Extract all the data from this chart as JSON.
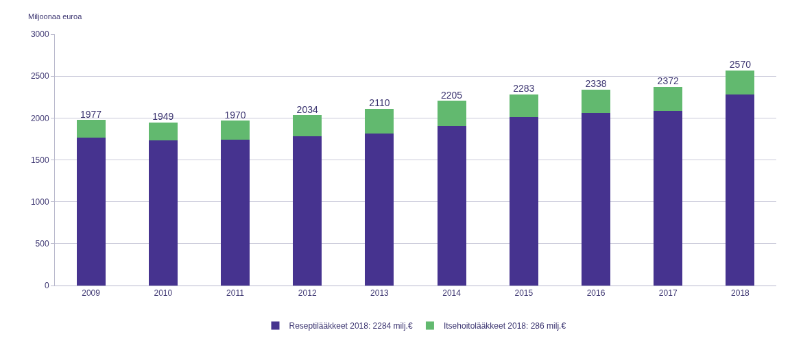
{
  "chart_data": {
    "type": "bar",
    "stacked": true,
    "ylabel": "Miljoonaa euroa",
    "categories": [
      "2009",
      "2010",
      "2011",
      "2012",
      "2013",
      "2014",
      "2015",
      "2016",
      "2017",
      "2018"
    ],
    "series": [
      {
        "name": "Reseptilääkkeet 2018: 2284 milj.€",
        "color": "#46338f",
        "values": [
          1766,
          1731,
          1739,
          1786,
          1818,
          1904,
          2015,
          2063,
          2087,
          2284
        ]
      },
      {
        "name": "Itsehoitolääkkeet 2018: 286 milj.€",
        "color": "#62b96f",
        "values": [
          211,
          218,
          231,
          248,
          292,
          301,
          268,
          275,
          285,
          286
        ]
      }
    ],
    "totals": [
      "1977",
      "1949",
      "1970",
      "2034",
      "2110",
      "2205",
      "2283",
      "2338",
      "2372",
      "2570"
    ],
    "ylim": [
      0,
      3000
    ],
    "yticks": [
      0,
      500,
      1000,
      1500,
      2000,
      2500,
      3000
    ],
    "grid": "y",
    "legend": "bottom"
  }
}
